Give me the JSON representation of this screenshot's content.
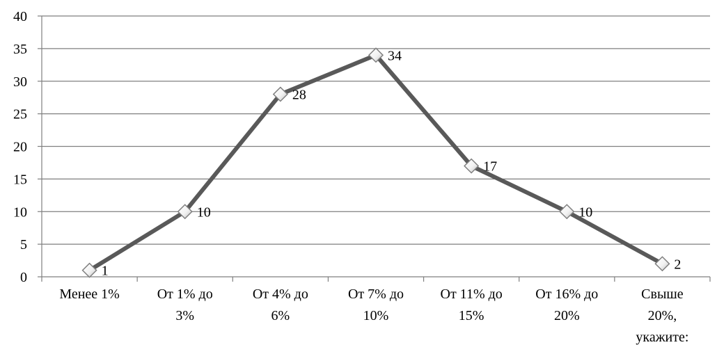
{
  "chart_data": {
    "type": "line",
    "title": "",
    "xlabel": "",
    "ylabel": "",
    "categories": [
      [
        "Менее 1%"
      ],
      [
        "От 1% до",
        "3%"
      ],
      [
        "От 4% до",
        "6%"
      ],
      [
        "От 7% до",
        "10%"
      ],
      [
        "От 11% до",
        "15%"
      ],
      [
        "От 16% до",
        "20%"
      ],
      [
        "Свыше",
        "20%,",
        "укажите:"
      ]
    ],
    "series": [
      {
        "values": [
          1,
          10,
          28,
          34,
          17,
          10,
          2
        ],
        "data_labels": [
          "1",
          "10",
          "28",
          "34",
          "17",
          "10",
          "2"
        ],
        "color": "#595959",
        "marker": "diamond"
      }
    ],
    "ylim": [
      0,
      40
    ],
    "yticks": [
      0,
      5,
      10,
      15,
      20,
      25,
      30,
      35,
      40
    ],
    "grid": true,
    "legend": "none",
    "colors": {
      "gridline": "#7f7f7f",
      "axis": "#7f7f7f",
      "series_line": "#595959",
      "marker_fill": "#ffffff",
      "marker_stroke": "#7f7f7f"
    }
  }
}
